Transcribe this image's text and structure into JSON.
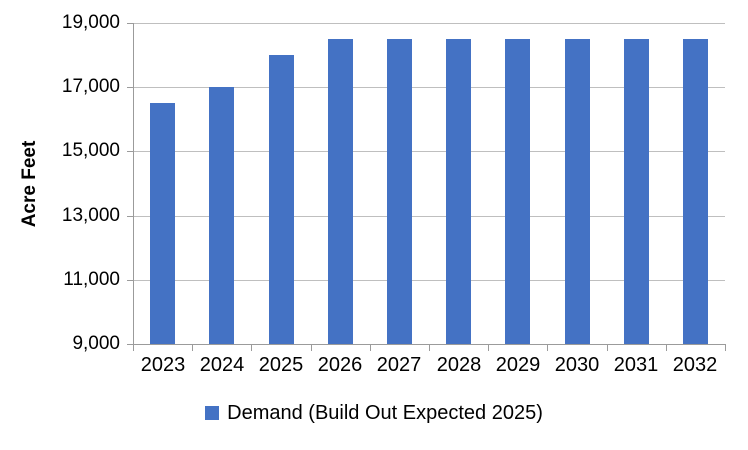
{
  "chart_data": {
    "type": "bar",
    "title": "",
    "xlabel": "",
    "ylabel": "Acre Feet",
    "categories": [
      "2023",
      "2024",
      "2025",
      "2026",
      "2027",
      "2028",
      "2029",
      "2030",
      "2031",
      "2032"
    ],
    "series": [
      {
        "name": "Demand (Build Out Expected 2025)",
        "values": [
          16500,
          17000,
          18000,
          18500,
          18500,
          18500,
          18500,
          18500,
          18500,
          18500
        ]
      }
    ],
    "ylim": [
      9000,
      19000
    ],
    "yticks": [
      9000,
      11000,
      13000,
      15000,
      17000,
      19000
    ],
    "ytick_labels": [
      "9,000",
      "11,000",
      "13,000",
      "15,000",
      "17,000",
      "19,000"
    ],
    "grid": "horizontal",
    "legend_position": "bottom-center",
    "legend": {
      "label": "Demand (Build Out Expected 2025)"
    },
    "colors": {
      "bar": "#4472C4",
      "gridline": "#BFBFBF",
      "axis": "#9B9B9B",
      "text": "#000000"
    }
  }
}
